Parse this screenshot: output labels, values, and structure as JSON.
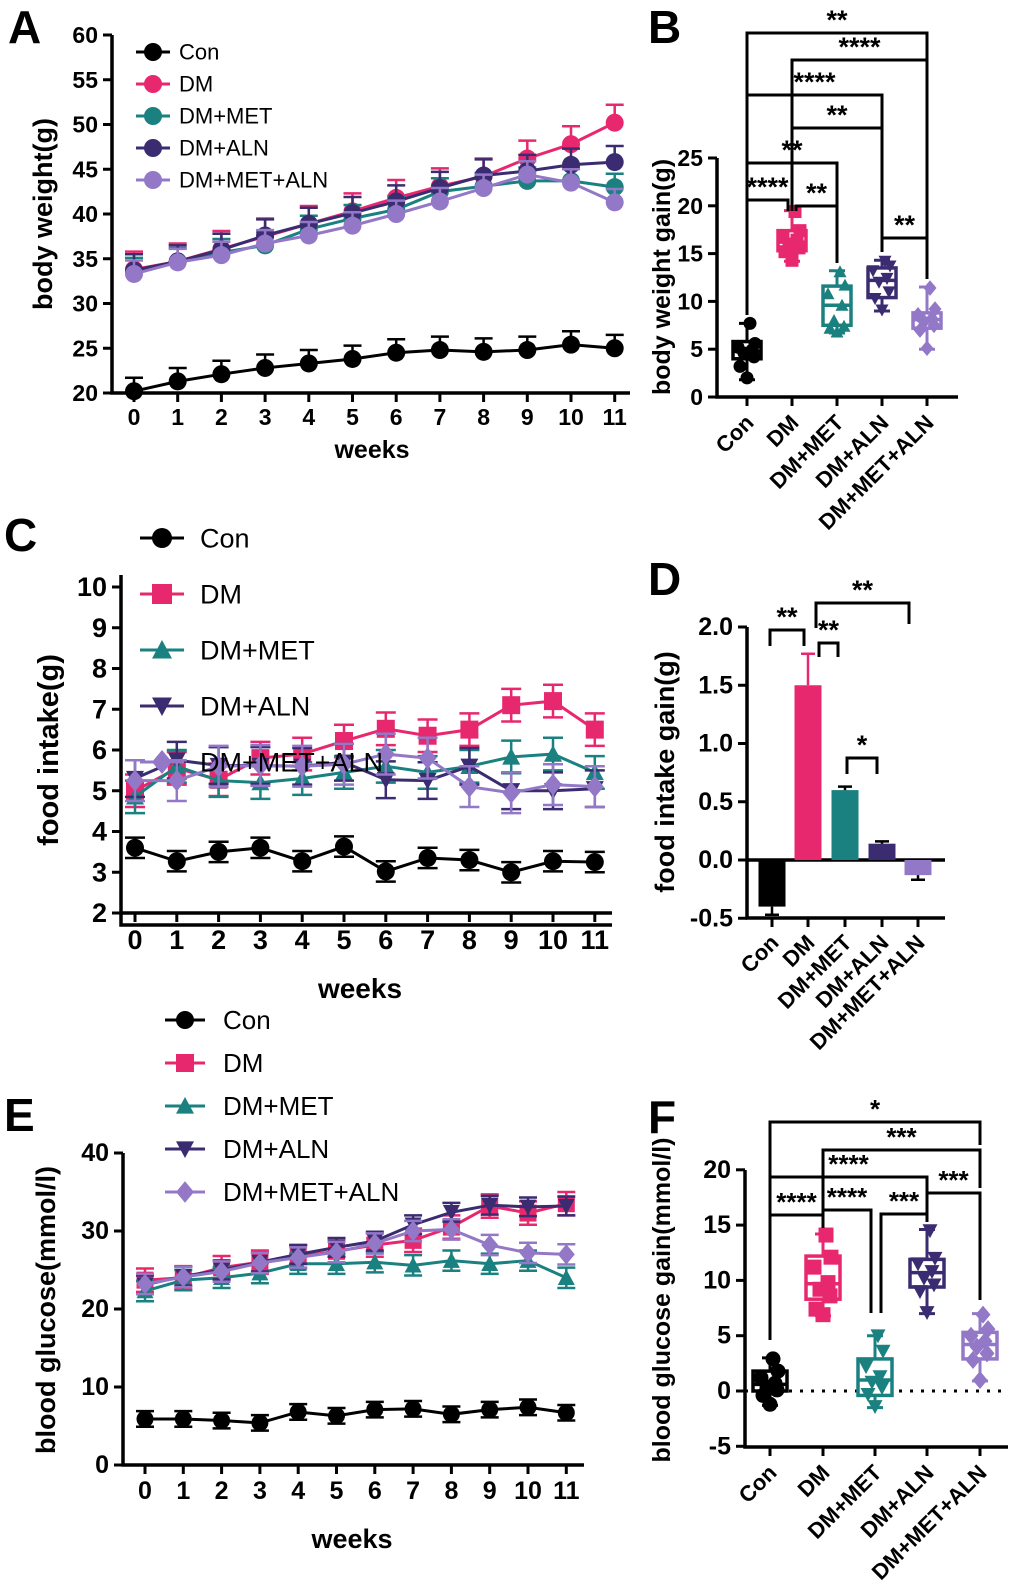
{
  "figure": {
    "background": "#FFFFFF"
  },
  "colors": {
    "con": "#000000",
    "dm": "#E8286E",
    "dm_met": "#1A8180",
    "dm_aln": "#3B2C71",
    "dm_met_aln": "#9478C8"
  },
  "chart_data": [
    {
      "panel": "A",
      "type": "line",
      "xlabel": "weeks",
      "ylabel": "body weight(g)",
      "x": [
        0,
        1,
        2,
        3,
        4,
        5,
        6,
        7,
        8,
        9,
        10,
        11
      ],
      "ylim": [
        20,
        60
      ],
      "yticks": [
        20,
        25,
        30,
        35,
        40,
        45,
        50,
        55,
        60
      ],
      "legend_position": "top-left-inside",
      "series": [
        {
          "name": "Con",
          "color": "con",
          "marker": "circle",
          "err": 1.5,
          "values": [
            20.2,
            21.3,
            22.1,
            22.8,
            23.3,
            23.8,
            24.5,
            24.8,
            24.6,
            24.8,
            25.4,
            25.0
          ]
        },
        {
          "name": "DM",
          "color": "dm",
          "marker": "circle",
          "err": 2.0,
          "values": [
            33.8,
            34.7,
            36.1,
            37.5,
            38.9,
            40.3,
            41.8,
            43.1,
            44.2,
            46.2,
            47.8,
            50.2
          ]
        },
        {
          "name": "DM+MET",
          "color": "dm_met",
          "marker": "circle",
          "err": 1.5,
          "values": [
            33.6,
            34.7,
            35.7,
            36.5,
            38.3,
            39.5,
            40.5,
            42.5,
            43.1,
            43.7,
            43.7,
            43.0
          ]
        },
        {
          "name": "DM+ALN",
          "color": "dm_aln",
          "marker": "circle",
          "err": 1.8,
          "values": [
            33.7,
            34.7,
            36.0,
            37.6,
            38.9,
            40.1,
            41.4,
            42.9,
            44.3,
            44.8,
            45.5,
            45.8
          ]
        },
        {
          "name": "DM+MET+ALN",
          "color": "dm_met_aln",
          "marker": "circle",
          "err": 1.5,
          "values": [
            33.3,
            34.6,
            35.4,
            36.7,
            37.6,
            38.7,
            40.0,
            41.4,
            42.9,
            44.4,
            43.5,
            41.3
          ]
        }
      ]
    },
    {
      "panel": "B",
      "type": "box",
      "ylabel": "body weight gain(g)",
      "categories": [
        "Con",
        "DM",
        "DM+MET",
        "DM+ALN",
        "DM+MET+ALN"
      ],
      "ylim": [
        0,
        25
      ],
      "yticks": [
        0,
        5,
        10,
        15,
        20,
        25
      ],
      "boxes": [
        {
          "group": "Con",
          "color": "con",
          "marker": "circle",
          "whisker_low": 1.8,
          "q1": 4.0,
          "median": 4.8,
          "q3": 5.8,
          "whisker_high": 7.7,
          "points": [
            2.0,
            3.2,
            4.2,
            4.6,
            4.9,
            5.2,
            5.6,
            7.7
          ]
        },
        {
          "group": "DM",
          "color": "dm",
          "marker": "square",
          "whisker_low": 14.2,
          "q1": 15.3,
          "median": 16.2,
          "q3": 17.4,
          "whisker_high": 19.5,
          "points": [
            14.3,
            15.2,
            15.6,
            16.0,
            16.4,
            16.8,
            17.4,
            19.4
          ]
        },
        {
          "group": "DM+MET",
          "color": "dm_met",
          "marker": "triangle-up",
          "whisker_low": 6.7,
          "q1": 7.5,
          "median": 9.6,
          "q3": 11.6,
          "whisker_high": 13.2,
          "points": [
            6.8,
            7.2,
            7.4,
            8.0,
            9.6,
            10.8,
            11.7,
            13.1
          ]
        },
        {
          "group": "DM+ALN",
          "color": "dm_aln",
          "marker": "triangle-down",
          "whisker_low": 9.0,
          "q1": 10.4,
          "median": 12.2,
          "q3": 13.5,
          "whisker_high": 14.3,
          "points": [
            9.1,
            10.3,
            11.0,
            12.0,
            12.4,
            13.2,
            13.7,
            14.2
          ]
        },
        {
          "group": "DM+MET+ALN",
          "color": "dm_met_aln",
          "marker": "diamond",
          "whisker_low": 5.0,
          "q1": 7.2,
          "median": 8.1,
          "q3": 8.8,
          "whisker_high": 11.5,
          "points": [
            5.1,
            7.0,
            7.5,
            7.9,
            8.2,
            8.6,
            9.2,
            11.4
          ]
        }
      ],
      "significance": [
        {
          "from": "Con",
          "to": "DM+MET+ALN",
          "label": "**"
        },
        {
          "from": "DM",
          "to": "DM+MET+ALN",
          "label": "****"
        },
        {
          "from": "Con",
          "to": "DM+ALN",
          "label": "****"
        },
        {
          "from": "DM",
          "to": "DM+ALN",
          "label": "**"
        },
        {
          "from": "Con",
          "to": "DM+MET",
          "label": "**"
        },
        {
          "from": "Con",
          "to": "DM",
          "label": "****"
        },
        {
          "from": "DM",
          "to": "DM+MET",
          "label": "**"
        },
        {
          "from": "DM+ALN",
          "to": "DM+MET+ALN",
          "label": "**"
        }
      ]
    },
    {
      "panel": "C",
      "type": "line",
      "xlabel": "weeks",
      "ylabel": "food intake(g)",
      "x": [
        0,
        1,
        2,
        3,
        4,
        5,
        6,
        7,
        8,
        9,
        10,
        11
      ],
      "ylim": [
        2,
        10
      ],
      "yticks": [
        2,
        3,
        4,
        5,
        6,
        7,
        8,
        9,
        10
      ],
      "legend_position": "top-left-inside",
      "series": [
        {
          "name": "Con",
          "color": "con",
          "marker": "circle",
          "err": 0.25,
          "values": [
            3.6,
            3.27,
            3.5,
            3.6,
            3.27,
            3.63,
            3.02,
            3.35,
            3.3,
            3.0,
            3.27,
            3.25
          ]
        },
        {
          "name": "DM",
          "color": "dm",
          "marker": "square",
          "err": 0.4,
          "values": [
            5.0,
            5.55,
            5.27,
            5.8,
            5.9,
            6.22,
            6.52,
            6.35,
            6.5,
            7.1,
            7.2,
            6.5
          ]
        },
        {
          "name": "DM+MET",
          "color": "dm_met",
          "marker": "triangle-up",
          "err": 0.4,
          "values": [
            4.85,
            5.6,
            5.25,
            5.2,
            5.3,
            5.45,
            5.6,
            5.45,
            5.6,
            5.83,
            5.9,
            5.45
          ]
        },
        {
          "name": "DM+ALN",
          "color": "dm_aln",
          "marker": "triangle-down",
          "err": 0.45,
          "values": [
            5.3,
            5.75,
            5.62,
            5.62,
            5.6,
            5.7,
            5.27,
            5.25,
            5.6,
            5.0,
            5.0,
            5.05
          ]
        },
        {
          "name": "DM+MET+ALN",
          "color": "dm_met_aln",
          "marker": "diamond",
          "err": 0.5,
          "values": [
            5.25,
            5.25,
            5.6,
            5.62,
            5.6,
            5.65,
            5.9,
            5.8,
            5.1,
            4.95,
            5.15,
            5.1
          ]
        }
      ]
    },
    {
      "panel": "D",
      "type": "bar",
      "ylabel": "food intake gain(g)",
      "categories": [
        "Con",
        "DM",
        "DM+MET",
        "DM+ALN",
        "DM+MET+ALN"
      ],
      "ylim": [
        -0.5,
        2.0
      ],
      "yticks": [
        2.0,
        1.5,
        1.0,
        0.5,
        0.0,
        -0.5
      ],
      "ytick_labels": [
        "2.0",
        "1.5",
        "1.0",
        "0.5",
        "0.0",
        "-0.5"
      ],
      "bar_colors": [
        "con",
        "dm",
        "dm_met",
        "dm_aln",
        "dm_met_aln"
      ],
      "values": [
        -0.4,
        1.5,
        0.6,
        0.14,
        -0.13
      ],
      "errors": [
        0.07,
        0.27,
        0.03,
        0.02,
        0.04
      ],
      "significance": [
        {
          "from": "Con",
          "to": "DM",
          "label": "**"
        },
        {
          "from": "DM",
          "to": "DM+MET",
          "label": "**"
        },
        {
          "from": "DM",
          "to": "DM+MET+ALN",
          "label": "**"
        },
        {
          "from": "DM+MET",
          "to": "DM+ALN",
          "label": "*"
        }
      ]
    },
    {
      "panel": "E",
      "type": "line",
      "xlabel": "weeks",
      "ylabel": "blood glucose(mmol/l)",
      "x": [
        0,
        1,
        2,
        3,
        4,
        5,
        6,
        7,
        8,
        9,
        10,
        11
      ],
      "ylim": [
        0,
        40
      ],
      "yticks": [
        0,
        10,
        20,
        30,
        40
      ],
      "legend_position": "top-left-above",
      "series": [
        {
          "name": "Con",
          "color": "con",
          "marker": "circle",
          "err": 1.0,
          "values": [
            5.9,
            5.9,
            5.7,
            5.4,
            6.8,
            6.3,
            7.1,
            7.2,
            6.5,
            7.1,
            7.4,
            6.7
          ]
        },
        {
          "name": "DM",
          "color": "dm",
          "marker": "square",
          "err": 1.5,
          "values": [
            23.7,
            24.0,
            25.3,
            26.0,
            26.7,
            27.4,
            28.2,
            28.8,
            30.5,
            33.2,
            32.3,
            33.5
          ]
        },
        {
          "name": "DM+MET",
          "color": "dm_met",
          "marker": "triangle-up",
          "err": 1.3,
          "values": [
            22.3,
            23.7,
            24.0,
            24.6,
            25.8,
            25.8,
            26.0,
            25.6,
            26.2,
            25.8,
            26.2,
            24.0
          ]
        },
        {
          "name": "DM+ALN",
          "color": "dm_aln",
          "marker": "triangle-down",
          "err": 1.2,
          "values": [
            23.1,
            24.2,
            25.0,
            26.0,
            27.0,
            27.9,
            28.7,
            30.8,
            32.4,
            33.3,
            33.1,
            33.2
          ]
        },
        {
          "name": "DM+MET+ALN",
          "color": "dm_met_aln",
          "marker": "diamond",
          "err": 1.3,
          "values": [
            23.2,
            24.1,
            24.8,
            25.9,
            26.6,
            27.3,
            28.4,
            30.0,
            30.2,
            28.2,
            27.2,
            27.0
          ]
        }
      ]
    },
    {
      "panel": "F",
      "type": "box",
      "ylabel": "blood glucose gain(mmol/l)",
      "categories": [
        "Con",
        "DM",
        "DM+MET",
        "DM+ALN",
        "DM+MET+ALN"
      ],
      "ylim": [
        -5,
        20
      ],
      "yticks": [
        -5,
        0,
        5,
        10,
        15,
        20
      ],
      "zero_line": "dotted",
      "boxes": [
        {
          "group": "Con",
          "color": "con",
          "marker": "circle",
          "whisker_low": -1.3,
          "q1": 0.0,
          "median": 0.6,
          "q3": 1.8,
          "whisker_high": 3.0,
          "points": [
            -1.2,
            -0.4,
            0.1,
            0.3,
            0.7,
            1.2,
            1.8,
            2.9
          ]
        },
        {
          "group": "DM",
          "color": "dm",
          "marker": "square",
          "whisker_low": 6.8,
          "q1": 8.3,
          "median": 9.7,
          "q3": 12.2,
          "whisker_high": 14.2,
          "points": [
            6.9,
            7.4,
            8.6,
            9.2,
            9.8,
            11.2,
            12.1,
            14.1
          ]
        },
        {
          "group": "DM+MET",
          "color": "dm_met",
          "marker": "triangle-down",
          "whisker_low": -1.5,
          "q1": -0.4,
          "median": 1.0,
          "q3": 2.9,
          "whisker_high": 5.0,
          "points": [
            -1.4,
            -0.3,
            0.3,
            0.8,
            1.3,
            2.2,
            3.6,
            5.0
          ]
        },
        {
          "group": "DM+ALN",
          "color": "dm_aln",
          "marker": "triangle-down",
          "whisker_low": 7.0,
          "q1": 9.4,
          "median": 10.7,
          "q3": 11.9,
          "whisker_high": 14.6,
          "points": [
            7.1,
            9.0,
            9.6,
            10.2,
            10.8,
            11.5,
            12.0,
            14.5
          ]
        },
        {
          "group": "DM+MET+ALN",
          "color": "dm_met_aln",
          "marker": "diamond",
          "whisker_low": 0.9,
          "q1": 2.9,
          "median": 4.2,
          "q3": 5.3,
          "whisker_high": 7.0,
          "points": [
            1.0,
            2.8,
            3.4,
            4.0,
            4.5,
            5.0,
            5.6,
            6.9
          ]
        }
      ],
      "significance": [
        {
          "from": "Con",
          "to": "DM+MET+ALN",
          "label": "*"
        },
        {
          "from": "DM",
          "to": "DM+MET+ALN",
          "label": "***"
        },
        {
          "from": "Con",
          "to": "DM+ALN",
          "label": "****"
        },
        {
          "from": "Con",
          "to": "DM",
          "label": "****"
        },
        {
          "from": "DM",
          "to": "DM+MET",
          "label": "****"
        },
        {
          "from": "DM+MET",
          "to": "DM+ALN",
          "label": "***"
        },
        {
          "from": "DM+ALN",
          "to": "DM+MET+ALN",
          "label": "***"
        }
      ]
    }
  ]
}
